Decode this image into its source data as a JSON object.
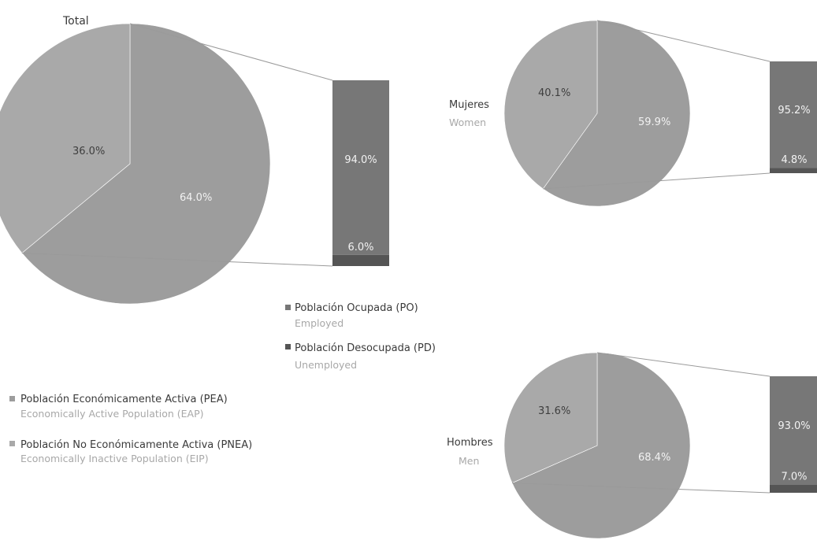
{
  "colors": {
    "pea": "#9d9d9d",
    "pnea": "#a9a9a9",
    "po": "#777777",
    "pd": "#555555"
  },
  "chart_data": [
    {
      "type": "pie",
      "title": "Total",
      "subtitle": "",
      "slices": [
        {
          "key": "pnea",
          "value": 36.0,
          "label": "36.0%"
        },
        {
          "key": "pea",
          "value": 64.0,
          "label": "64.0%"
        }
      ],
      "breakdown": [
        {
          "key": "po",
          "value": 94.0,
          "label": "94.0%"
        },
        {
          "key": "pd",
          "value": 6.0,
          "label": "6.0%"
        }
      ]
    },
    {
      "type": "pie",
      "title": "Mujeres",
      "subtitle": "Women",
      "slices": [
        {
          "key": "pnea",
          "value": 40.1,
          "label": "40.1%"
        },
        {
          "key": "pea",
          "value": 59.9,
          "label": "59.9%"
        }
      ],
      "breakdown": [
        {
          "key": "po",
          "value": 95.2,
          "label": "95.2%"
        },
        {
          "key": "pd",
          "value": 4.8,
          "label": "4.8%"
        }
      ]
    },
    {
      "type": "pie",
      "title": "Hombres",
      "subtitle": "Men",
      "slices": [
        {
          "key": "pnea",
          "value": 31.6,
          "label": "31.6%"
        },
        {
          "key": "pea",
          "value": 68.4,
          "label": "68.4%"
        }
      ],
      "breakdown": [
        {
          "key": "po",
          "value": 93.0,
          "label": "93.0%"
        },
        {
          "key": "pd",
          "value": 7.0,
          "label": "7.0%"
        }
      ]
    }
  ],
  "legend_breakdown": [
    {
      "key": "po",
      "label": "Población Ocupada (PO)",
      "sublabel": "Employed"
    },
    {
      "key": "pd",
      "label": "Población Desocupada (PD)",
      "sublabel": "Unemployed"
    }
  ],
  "legend_main": [
    {
      "key": "pea",
      "label": "Población Económicamente Activa (PEA)",
      "sublabel": "Economically Active Population (EAP)"
    },
    {
      "key": "pnea",
      "label": "Población No Económicamente Activa (PNEA)",
      "sublabel": "Economically Inactive Population (EIP)"
    }
  ]
}
